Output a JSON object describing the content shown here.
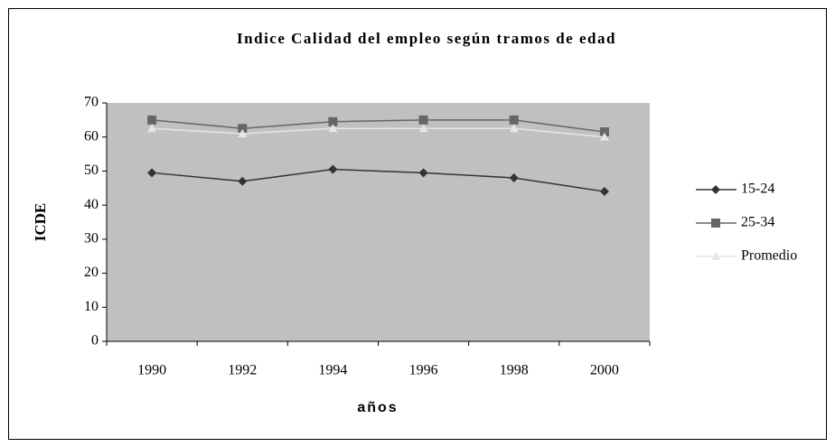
{
  "chart_data": {
    "type": "line",
    "title": "Indice Calidad del empleo según tramos de edad",
    "x_label": "años",
    "y_label": "ICDE",
    "categories": [
      "1990",
      "1992",
      "1994",
      "1996",
      "1998",
      "2000"
    ],
    "series": [
      {
        "name": "15-24",
        "color": "#333333",
        "marker": "diamond",
        "values": [
          49.5,
          47,
          50.5,
          49.5,
          48,
          44
        ]
      },
      {
        "name": "25-34",
        "color": "#666666",
        "marker": "square",
        "values": [
          65,
          62.5,
          64.5,
          65,
          65,
          61.5
        ]
      },
      {
        "name": "Promedio",
        "color": "#e6e6e6",
        "marker": "triangle",
        "values": [
          62.5,
          61,
          62.5,
          62.5,
          62.5,
          60
        ]
      }
    ],
    "ylim": [
      0,
      70
    ],
    "yticks": [
      0,
      10,
      20,
      30,
      40,
      50,
      60,
      70
    ],
    "legend": "right",
    "plot_background": "#c0c0c0"
  }
}
